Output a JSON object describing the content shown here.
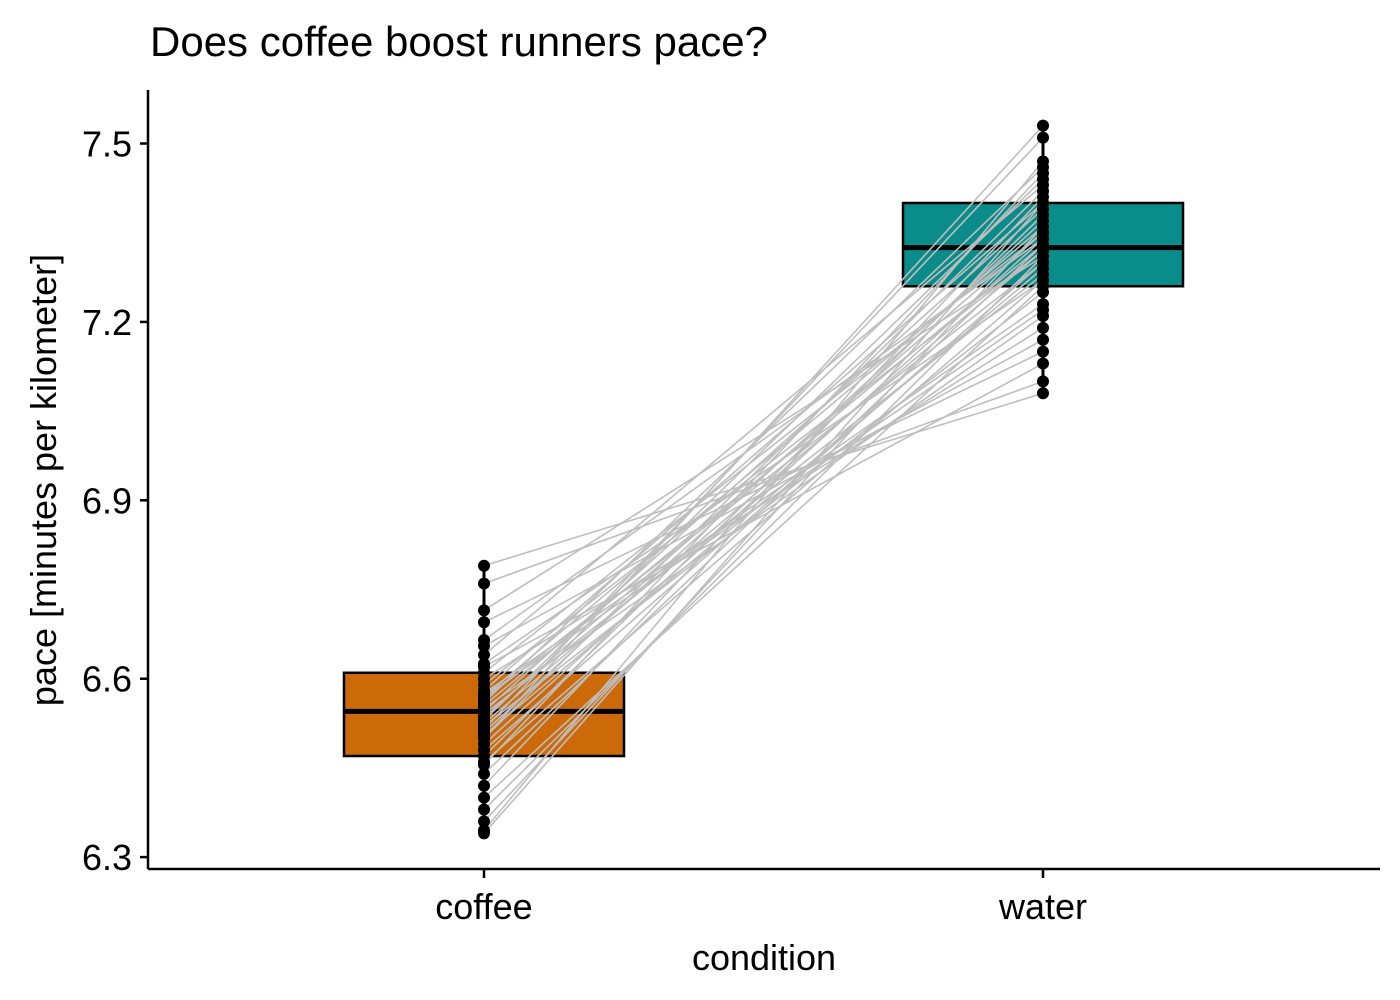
{
  "chart_data": {
    "type": "boxplot",
    "title": "Does coffee boost runners pace?",
    "xlabel": "condition",
    "ylabel": "pace [minutes per kilometer]",
    "categories": [
      "coffee",
      "water"
    ],
    "ylim": [
      6.28,
      7.59
    ],
    "yticks": [
      "6.3",
      "6.6",
      "6.9",
      "7.2",
      "7.5"
    ],
    "grid": false,
    "legend": "none",
    "colors": {
      "coffee": "#CC6A0A",
      "water": "#0A8C8A",
      "pair_line": "#BEBEBE",
      "point": "#000000"
    },
    "boxes": [
      {
        "category": "coffee",
        "q1": 6.47,
        "median": 6.545,
        "q3": 6.61,
        "whisker_low": 6.34,
        "whisker_high": 6.79
      },
      {
        "category": "water",
        "q1": 7.26,
        "median": 7.325,
        "q3": 7.4,
        "whisker_low": 7.08,
        "whisker_high": 7.53
      }
    ],
    "pairs": [
      [
        6.34,
        7.4
      ],
      [
        6.345,
        7.47
      ],
      [
        6.36,
        7.36
      ],
      [
        6.38,
        7.31
      ],
      [
        6.4,
        7.26
      ],
      [
        6.42,
        7.41
      ],
      [
        6.44,
        7.33
      ],
      [
        6.455,
        7.45
      ],
      [
        6.46,
        7.27
      ],
      [
        6.47,
        7.38
      ],
      [
        6.48,
        7.3
      ],
      [
        6.49,
        7.34
      ],
      [
        6.5,
        7.42
      ],
      [
        6.505,
        7.29
      ],
      [
        6.51,
        7.37
      ],
      [
        6.515,
        7.51
      ],
      [
        6.52,
        7.25
      ],
      [
        6.525,
        7.32
      ],
      [
        6.53,
        7.44
      ],
      [
        6.535,
        7.35
      ],
      [
        6.54,
        7.28
      ],
      [
        6.545,
        7.39
      ],
      [
        6.55,
        7.21
      ],
      [
        6.555,
        7.33
      ],
      [
        6.56,
        7.46
      ],
      [
        6.565,
        7.3
      ],
      [
        6.57,
        7.36
      ],
      [
        6.575,
        7.23
      ],
      [
        6.58,
        7.4
      ],
      [
        6.59,
        7.32
      ],
      [
        6.6,
        7.19
      ],
      [
        6.61,
        7.35
      ],
      [
        6.625,
        7.27
      ],
      [
        6.64,
        7.43
      ],
      [
        6.655,
        7.17
      ],
      [
        6.665,
        7.34
      ],
      [
        6.695,
        7.15
      ],
      [
        6.715,
        7.31
      ],
      [
        6.76,
        7.1
      ],
      [
        6.79,
        7.08
      ],
      [
        6.5,
        7.53
      ],
      [
        6.57,
        7.22
      ],
      [
        6.62,
        7.13
      ]
    ]
  }
}
